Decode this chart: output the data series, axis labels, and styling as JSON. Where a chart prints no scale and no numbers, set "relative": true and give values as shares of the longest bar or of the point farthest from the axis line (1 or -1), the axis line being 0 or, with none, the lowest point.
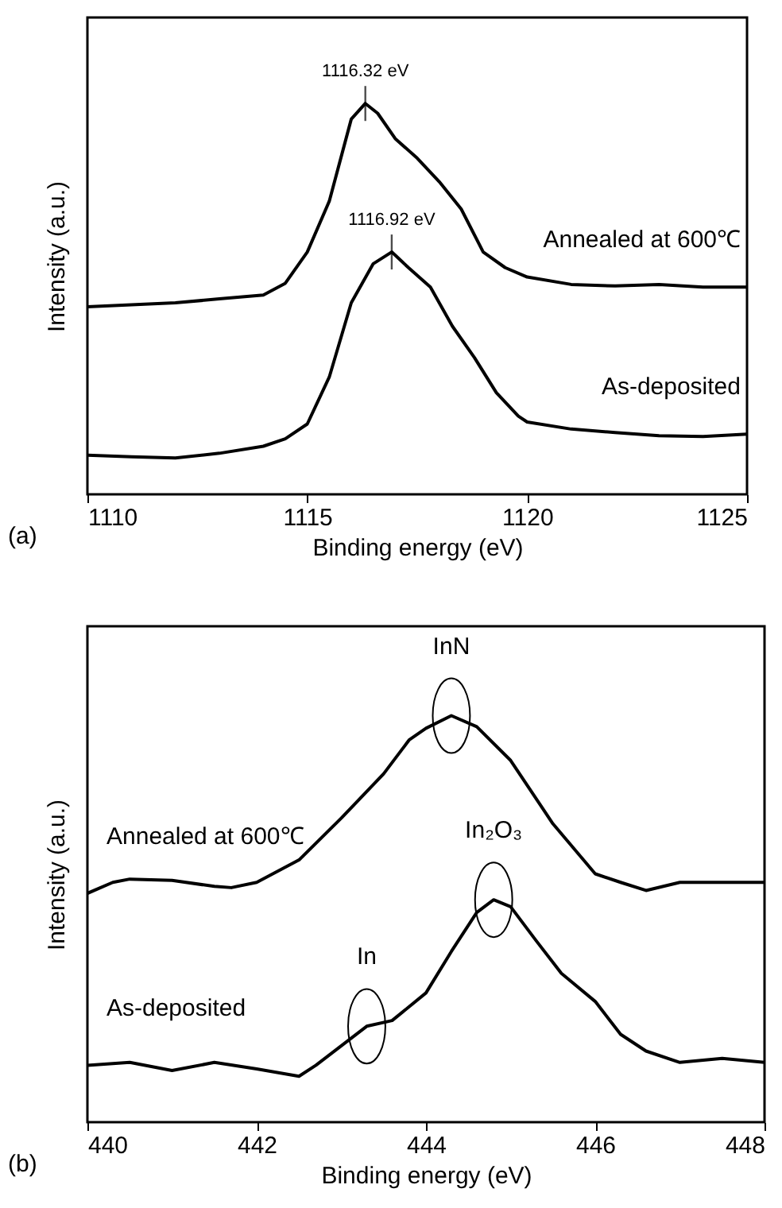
{
  "chart_data": [
    {
      "type": "line",
      "relative": true,
      "xlabel": "Binding energy (eV)",
      "ylabel": "Intensity (a.u.)",
      "xlim": [
        1110,
        1125
      ],
      "xticks": [
        1110,
        1115,
        1120,
        1125
      ],
      "series": [
        {
          "name": "Annealed at 600℃",
          "color": "#000000",
          "x": [
            1110,
            1111,
            1112,
            1113,
            1114,
            1114.5,
            1115,
            1115.5,
            1116,
            1116.32,
            1116.6,
            1117,
            1117.5,
            1118,
            1118.5,
            1119,
            1119.5,
            1120,
            1121,
            1122,
            1123,
            1124,
            1125
          ],
          "values": [
            0.48,
            0.485,
            0.49,
            0.5,
            0.51,
            0.54,
            0.62,
            0.75,
            0.96,
            1.0,
            0.975,
            0.91,
            0.86,
            0.8,
            0.73,
            0.62,
            0.58,
            0.556,
            0.537,
            0.533,
            0.537,
            0.53,
            0.53
          ]
        },
        {
          "name": "As-deposited",
          "color": "#000000",
          "x": [
            1110,
            1111,
            1112,
            1113,
            1114,
            1114.5,
            1115,
            1115.5,
            1116,
            1116.5,
            1116.92,
            1117.3,
            1117.8,
            1118.3,
            1118.8,
            1119.3,
            1119.8,
            1120,
            1121,
            1122,
            1123,
            1124,
            1125
          ],
          "values": [
            0.1,
            0.096,
            0.093,
            0.105,
            0.123,
            0.142,
            0.18,
            0.3,
            0.49,
            0.59,
            0.62,
            0.58,
            0.53,
            0.43,
            0.35,
            0.26,
            0.2,
            0.185,
            0.167,
            0.158,
            0.15,
            0.148,
            0.154
          ]
        }
      ],
      "annotations": [
        {
          "text": "1116.32 eV",
          "x": 1116.32,
          "y": 1.0
        },
        {
          "text": "1116.92 eV",
          "x": 1116.92,
          "y": 0.62
        },
        "(a)"
      ]
    },
    {
      "type": "line",
      "relative": true,
      "xlabel": "Binding energy (eV)",
      "ylabel": "Intensity (a.u.)",
      "xlim": [
        440,
        448
      ],
      "xticks": [
        440,
        442,
        444,
        446,
        448
      ],
      "series": [
        {
          "name": "Annealed at 600℃",
          "color": "#000000",
          "x": [
            440,
            440.3,
            440.5,
            441,
            441.5,
            441.7,
            442,
            442.5,
            443,
            443.5,
            443.8,
            444,
            444.3,
            444.6,
            445,
            445.5,
            446,
            446.3,
            446.6,
            447,
            447.5,
            448
          ],
          "values": [
            0.563,
            0.59,
            0.598,
            0.595,
            0.58,
            0.577,
            0.59,
            0.645,
            0.748,
            0.857,
            0.94,
            0.969,
            1.0,
            0.973,
            0.89,
            0.734,
            0.611,
            0.59,
            0.57,
            0.59,
            0.59,
            0.59
          ]
        },
        {
          "name": "As-deposited",
          "color": "#000000",
          "x": [
            440,
            440.5,
            441,
            441.5,
            442,
            442.5,
            442.7,
            443,
            443.3,
            443.6,
            444,
            444.3,
            444.6,
            444.8,
            445,
            445.3,
            445.6,
            446,
            446.3,
            446.6,
            447,
            447.5,
            448
          ],
          "values": [
            0.14,
            0.147,
            0.127,
            0.147,
            0.131,
            0.113,
            0.14,
            0.188,
            0.236,
            0.25,
            0.318,
            0.42,
            0.516,
            0.547,
            0.53,
            0.447,
            0.366,
            0.297,
            0.216,
            0.175,
            0.147,
            0.157,
            0.147
          ]
        }
      ],
      "annotations": [
        {
          "text": "InN",
          "x": 444.3,
          "y": 1.0
        },
        {
          "text": "In₂O₃",
          "x": 444.8,
          "y": 0.547
        },
        {
          "text": "In",
          "x": 443.3,
          "y": 0.236
        },
        "(b)"
      ]
    }
  ]
}
